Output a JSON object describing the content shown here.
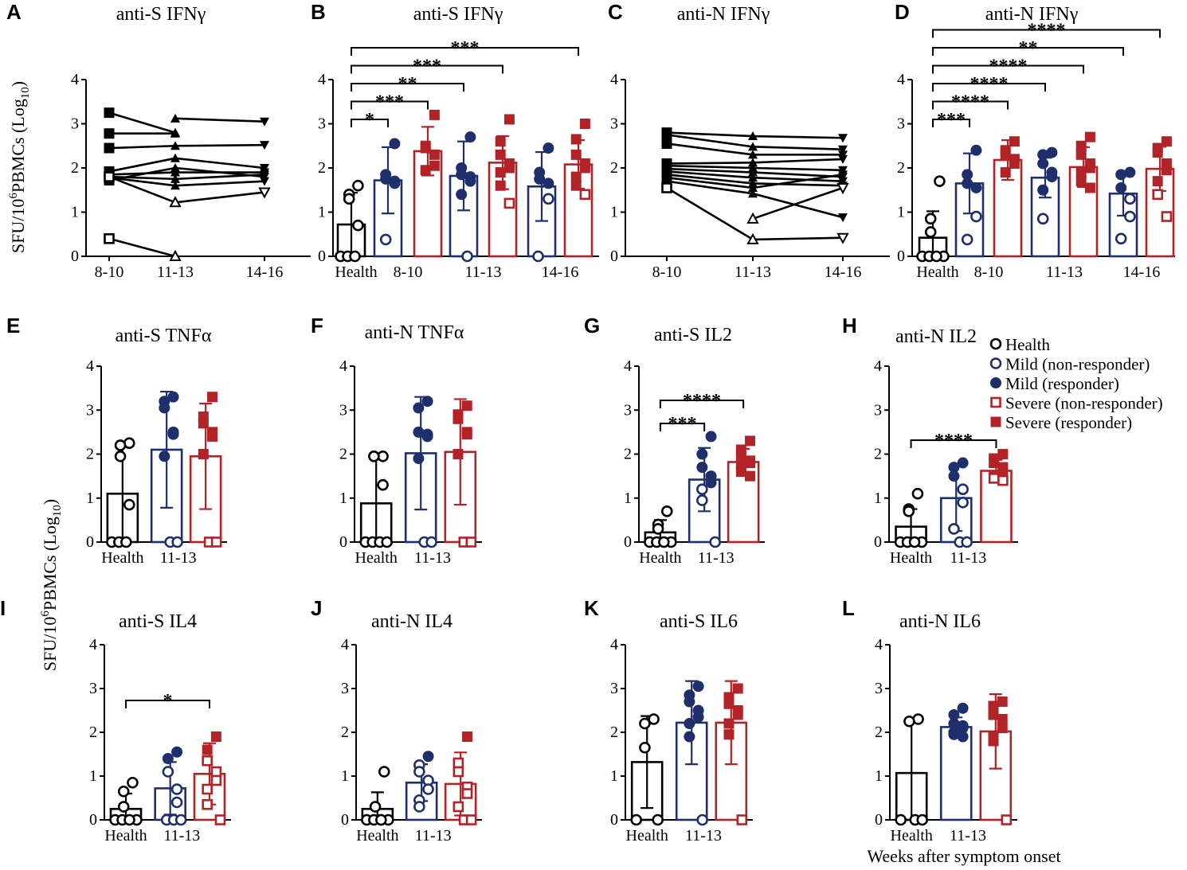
{
  "figure": {
    "y_axis_label_top": "SFU/10⁶ PBMCs (Log₁₀)",
    "y_axis_label_mid": "SFU/10⁶ PBMCs (Log₁₀)",
    "x_axis_label": "Weeks after symptom onset",
    "legend": [
      {
        "label": "Health",
        "marker": "circle-open",
        "color": "#000000"
      },
      {
        "label": "Mild (non-responder)",
        "marker": "circle-open",
        "color": "#1f2f6b"
      },
      {
        "label": "Mild (responder)",
        "marker": "circle-filled",
        "color": "#1f2f6b"
      },
      {
        "label": "Severe (non-responder)",
        "marker": "square-open",
        "color": "#b22328"
      },
      {
        "label": "Severe (responder)",
        "marker": "square-filled",
        "color": "#b22328"
      }
    ],
    "colors": {
      "health": "#000000",
      "mild": "#1f2f6b",
      "severe": "#b22328"
    }
  },
  "chart_data": [
    {
      "panel": "A",
      "type": "line",
      "title": "anti-S IFNγ",
      "categories": [
        "8-10",
        "11-13",
        "14-16"
      ],
      "ylim": [
        0,
        4
      ],
      "yticks": [
        "0",
        "1",
        "2",
        "3",
        "4"
      ],
      "series": [
        {
          "marker": "square-filled",
          "values": [
            3.25,
            2.8,
            null
          ]
        },
        {
          "marker": "square-filled",
          "values": [
            2.78,
            2.78,
            null
          ]
        },
        {
          "marker": "square-filled",
          "values": [
            2.45,
            2.5,
            2.52
          ]
        },
        {
          "marker": "square-filled",
          "values": [
            1.92,
            2.22,
            2.0
          ]
        },
        {
          "marker": "square-filled",
          "values": [
            1.85,
            1.9,
            1.9
          ]
        },
        {
          "marker": "square-filled",
          "values": [
            1.8,
            1.75,
            1.85
          ]
        },
        {
          "marker": "square-filled",
          "values": [
            1.72,
            2.0,
            1.8
          ]
        },
        {
          "marker": "square-filled",
          "values": [
            1.78,
            1.6,
            1.7
          ]
        },
        {
          "marker": "square-open",
          "values": [
            1.8,
            1.22,
            1.45
          ]
        },
        {
          "marker": "square-open",
          "values": [
            0.4,
            0.0,
            null
          ]
        },
        {
          "marker": "triangle-filled",
          "values": [
            null,
            3.12,
            3.05
          ]
        }
      ]
    },
    {
      "panel": "B",
      "type": "bar",
      "title": "anti-S IFNγ",
      "categories": [
        "Health",
        "8-10",
        "11-13",
        "14-16"
      ],
      "ylim": [
        0,
        4
      ],
      "yticks": [
        "0",
        "1",
        "2",
        "3",
        "4"
      ],
      "bars": [
        {
          "group": "health",
          "mean": 0.72,
          "sd": 0.72,
          "points": [
            1.6,
            1.4,
            1.3,
            0.7,
            0.0,
            0.0,
            0.0
          ]
        },
        {
          "group": "mild",
          "mean": 1.72,
          "sd": 0.75,
          "points": [
            2.55,
            1.85,
            1.75,
            1.7,
            1.65,
            0.38
          ]
        },
        {
          "group": "severe",
          "mean": 2.38,
          "sd": 0.55,
          "points": [
            3.2,
            2.5,
            2.45,
            2.3,
            2.05,
            1.95
          ]
        },
        {
          "group": "mild",
          "mean": 1.82,
          "sd": 0.78,
          "points": [
            2.7,
            2.0,
            1.85,
            1.8,
            1.7,
            1.4,
            0.0
          ]
        },
        {
          "group": "severe",
          "mean": 2.12,
          "sd": 0.6,
          "points": [
            3.1,
            2.6,
            2.3,
            2.1,
            2.0,
            1.9,
            1.6,
            1.2
          ]
        },
        {
          "group": "mild",
          "mean": 1.58,
          "sd": 0.78,
          "points": [
            2.45,
            1.9,
            1.75,
            1.65,
            1.3,
            0.0
          ]
        },
        {
          "group": "severe",
          "mean": 2.08,
          "sd": 0.55,
          "points": [
            3.0,
            2.65,
            2.3,
            2.1,
            2.0,
            1.8,
            1.6,
            1.4
          ]
        }
      ],
      "significance": [
        {
          "from": 0,
          "to": 1,
          "label": "*"
        },
        {
          "from": 0,
          "to": 2,
          "label": "***"
        },
        {
          "from": 0,
          "to": 3,
          "label": "**"
        },
        {
          "from": 0,
          "to": 4,
          "label": "***"
        },
        {
          "from": 0,
          "to": 6,
          "label": "***"
        }
      ]
    },
    {
      "panel": "C",
      "type": "line",
      "title": "anti-N IFNγ",
      "categories": [
        "8-10",
        "11-13",
        "14-16"
      ],
      "ylim": [
        0,
        4
      ],
      "yticks": [
        "0",
        "1",
        "2",
        "3",
        "4"
      ],
      "series": [
        {
          "marker": "square-filled",
          "values": [
            2.8,
            2.72,
            2.68
          ]
        },
        {
          "marker": "square-filled",
          "values": [
            2.75,
            2.48,
            2.42
          ]
        },
        {
          "marker": "square-filled",
          "values": [
            2.55,
            2.3,
            2.3
          ]
        },
        {
          "marker": "square-filled",
          "values": [
            2.1,
            2.12,
            2.2
          ]
        },
        {
          "marker": "square-filled",
          "values": [
            2.05,
            2.0,
            1.95
          ]
        },
        {
          "marker": "square-filled",
          "values": [
            1.98,
            1.9,
            1.8
          ]
        },
        {
          "marker": "square-filled",
          "values": [
            1.92,
            1.78,
            1.7
          ]
        },
        {
          "marker": "square-filled",
          "values": [
            1.85,
            1.65,
            1.6
          ]
        },
        {
          "marker": "square-filled",
          "values": [
            1.78,
            1.55,
            1.85
          ]
        },
        {
          "marker": "square-filled",
          "values": [
            1.7,
            1.42,
            0.88
          ]
        },
        {
          "marker": "square-open",
          "values": [
            1.55,
            0.38,
            0.42
          ]
        },
        {
          "marker": "triangle-open",
          "values": [
            null,
            0.85,
            1.55
          ]
        }
      ]
    },
    {
      "panel": "D",
      "type": "bar",
      "title": "anti-N IFNγ",
      "categories": [
        "Health",
        "8-10",
        "11-13",
        "14-16"
      ],
      "ylim": [
        0,
        4
      ],
      "yticks": [
        "0",
        "1",
        "2",
        "3",
        "4"
      ],
      "bars": [
        {
          "group": "health",
          "mean": 0.42,
          "sd": 0.6,
          "points": [
            1.7,
            0.85,
            0.55,
            0.0,
            0.0,
            0.0,
            0.0
          ]
        },
        {
          "group": "mild",
          "mean": 1.65,
          "sd": 0.68,
          "points": [
            2.4,
            1.85,
            1.65,
            1.55,
            0.9,
            0.38
          ]
        },
        {
          "group": "severe",
          "mean": 2.18,
          "sd": 0.45,
          "points": [
            2.6,
            2.4,
            2.3,
            2.2,
            2.1,
            1.9
          ]
        },
        {
          "group": "mild",
          "mean": 1.78,
          "sd": 0.45,
          "points": [
            2.35,
            2.3,
            2.1,
            1.9,
            1.8,
            1.5,
            0.85
          ]
        },
        {
          "group": "severe",
          "mean": 2.02,
          "sd": 0.45,
          "points": [
            2.7,
            2.5,
            2.3,
            2.1,
            2.0,
            1.9,
            1.7,
            1.55
          ]
        },
        {
          "group": "mild",
          "mean": 1.42,
          "sd": 0.5,
          "points": [
            1.9,
            1.85,
            1.55,
            1.3,
            0.9,
            0.4
          ]
        },
        {
          "group": "severe",
          "mean": 1.98,
          "sd": 0.5,
          "points": [
            2.6,
            2.45,
            2.35,
            2.1,
            1.95,
            1.7,
            1.4,
            0.9
          ]
        }
      ],
      "significance": [
        {
          "from": 0,
          "to": 1,
          "label": "***"
        },
        {
          "from": 0,
          "to": 2,
          "label": "****"
        },
        {
          "from": 0,
          "to": 3,
          "label": "****"
        },
        {
          "from": 0,
          "to": 4,
          "label": "****"
        },
        {
          "from": 0,
          "to": 5,
          "label": "**"
        },
        {
          "from": 0,
          "to": 6,
          "label": "****"
        }
      ]
    },
    {
      "panel": "E",
      "type": "bar",
      "title": "anti-S TNFα",
      "categories": [
        "Health",
        "11-13"
      ],
      "ylim": [
        0,
        4
      ],
      "yticks": [
        "0",
        "1",
        "2",
        "3",
        "4"
      ],
      "bars": [
        {
          "group": "health",
          "mean": 1.1,
          "sd": 1.15,
          "points": [
            2.25,
            2.2,
            1.95,
            0.85,
            0.0,
            0.0,
            0.0
          ]
        },
        {
          "group": "mild",
          "mean": 2.1,
          "sd": 1.32,
          "points": [
            3.3,
            3.2,
            3.05,
            2.5,
            2.45,
            1.95,
            0.0,
            0.0
          ]
        },
        {
          "group": "severe",
          "mean": 1.95,
          "sd": 1.2,
          "points": [
            3.3,
            2.85,
            2.7,
            2.5,
            2.4,
            2.0,
            0.0,
            0.0
          ]
        }
      ],
      "significance": []
    },
    {
      "panel": "F",
      "type": "bar",
      "title": "anti-N TNFα",
      "categories": [
        "Health",
        "11-13"
      ],
      "ylim": [
        0,
        4
      ],
      "yticks": [
        "0",
        "1",
        "2",
        "3",
        "4"
      ],
      "bars": [
        {
          "group": "health",
          "mean": 0.88,
          "sd": 1.08,
          "points": [
            1.95,
            1.95,
            1.95,
            1.3,
            0.0,
            0.0,
            0.0,
            0.0
          ]
        },
        {
          "group": "mild",
          "mean": 2.02,
          "sd": 1.28,
          "points": [
            3.2,
            3.05,
            2.5,
            2.45,
            2.4,
            1.9,
            0.0,
            0.0
          ]
        },
        {
          "group": "severe",
          "mean": 2.05,
          "sd": 1.2,
          "points": [
            3.1,
            2.9,
            2.8,
            2.5,
            2.45,
            2.0,
            0.0,
            0.0
          ]
        }
      ],
      "significance": []
    },
    {
      "panel": "G",
      "type": "bar",
      "title": "anti-S IL2",
      "categories": [
        "Health",
        "11-13"
      ],
      "ylim": [
        0,
        4
      ],
      "yticks": [
        "0",
        "1",
        "2",
        "3",
        "4"
      ],
      "bars": [
        {
          "group": "health",
          "mean": 0.22,
          "sd": 0.28,
          "points": [
            0.7,
            0.4,
            0.3,
            0.0,
            0.0,
            0.0,
            0.0
          ]
        },
        {
          "group": "mild",
          "mean": 1.42,
          "sd": 0.72,
          "points": [
            2.4,
            2.0,
            1.7,
            1.5,
            1.35,
            1.2,
            0.95,
            0.0
          ]
        },
        {
          "group": "severe",
          "mean": 1.82,
          "sd": 0.3,
          "points": [
            2.3,
            2.1,
            1.95,
            1.85,
            1.8,
            1.75,
            1.6,
            1.5
          ]
        }
      ],
      "significance": [
        {
          "from": 0,
          "to": 1,
          "label": "***"
        },
        {
          "from": 0,
          "to": 2,
          "label": "****"
        }
      ]
    },
    {
      "panel": "H",
      "type": "bar",
      "title": "anti-N IL2",
      "categories": [
        "Health",
        "11-13"
      ],
      "ylim": [
        0,
        4
      ],
      "yticks": [
        "0",
        "1",
        "2",
        "3",
        "4"
      ],
      "bars": [
        {
          "group": "health",
          "mean": 0.35,
          "sd": 0.4,
          "points": [
            1.1,
            0.75,
            0.7,
            0.0,
            0.0,
            0.0,
            0.0
          ]
        },
        {
          "group": "mild",
          "mean": 1.0,
          "sd": 0.75,
          "points": [
            1.8,
            1.7,
            1.5,
            1.2,
            0.9,
            0.3,
            0.0,
            0.0
          ]
        },
        {
          "group": "severe",
          "mean": 1.62,
          "sd": 0.25,
          "points": [
            2.0,
            1.9,
            1.8,
            1.7,
            1.6,
            1.5,
            1.45,
            1.4
          ]
        }
      ],
      "significance": [
        {
          "from": 0,
          "to": 2,
          "label": "****"
        }
      ]
    },
    {
      "panel": "I",
      "type": "bar",
      "title": "anti-S IL4",
      "categories": [
        "Health",
        "11-13"
      ],
      "ylim": [
        0,
        4
      ],
      "yticks": [
        "0",
        "1",
        "2",
        "3",
        "4"
      ],
      "bars": [
        {
          "group": "health",
          "mean": 0.25,
          "sd": 0.35,
          "points": [
            0.85,
            0.65,
            0.3,
            0.0,
            0.0,
            0.0,
            0.0
          ]
        },
        {
          "group": "mild",
          "mean": 0.72,
          "sd": 0.6,
          "points": [
            1.55,
            1.4,
            1.1,
            0.7,
            0.4,
            0.0,
            0.0,
            0.0
          ]
        },
        {
          "group": "severe",
          "mean": 1.05,
          "sd": 0.7,
          "points": [
            1.9,
            1.6,
            1.35,
            1.1,
            0.9,
            0.7,
            0.35,
            0.0
          ]
        }
      ],
      "significance": [
        {
          "from": 0,
          "to": 2,
          "label": "*"
        }
      ]
    },
    {
      "panel": "J",
      "type": "bar",
      "title": "anti-N IL4",
      "categories": [
        "Health",
        "11-13"
      ],
      "ylim": [
        0,
        4
      ],
      "yticks": [
        "0",
        "1",
        "2",
        "3",
        "4"
      ],
      "bars": [
        {
          "group": "health",
          "mean": 0.25,
          "sd": 0.38,
          "points": [
            1.1,
            0.3,
            0.0,
            0.0,
            0.0,
            0.0,
            0.0
          ]
        },
        {
          "group": "mild",
          "mean": 0.85,
          "sd": 0.42,
          "points": [
            1.45,
            1.25,
            1.1,
            0.9,
            0.7,
            0.45,
            0.3
          ]
        },
        {
          "group": "severe",
          "mean": 0.82,
          "sd": 0.72,
          "points": [
            1.9,
            1.3,
            1.1,
            0.75,
            0.6,
            0.3,
            0.0,
            0.0
          ]
        }
      ],
      "significance": []
    },
    {
      "panel": "K",
      "type": "bar",
      "title": "anti-S IL6",
      "categories": [
        "Health",
        "11-13"
      ],
      "ylim": [
        0,
        4
      ],
      "yticks": [
        "0",
        "1",
        "2",
        "3",
        "4"
      ],
      "bars": [
        {
          "group": "health",
          "mean": 1.32,
          "sd": 1.05,
          "points": [
            2.3,
            2.2,
            1.65,
            0.0,
            0.0
          ]
        },
        {
          "group": "mild",
          "mean": 2.22,
          "sd": 0.95,
          "points": [
            3.05,
            2.85,
            2.7,
            2.5,
            2.35,
            2.2,
            1.9,
            0.0
          ]
        },
        {
          "group": "severe",
          "mean": 2.22,
          "sd": 0.95,
          "points": [
            3.0,
            2.8,
            2.65,
            2.5,
            2.4,
            2.2,
            1.95,
            0.0
          ]
        }
      ],
      "significance": []
    },
    {
      "panel": "L",
      "type": "bar",
      "title": "anti-N IL6",
      "categories": [
        "Health",
        "11-13"
      ],
      "ylim": [
        0,
        4
      ],
      "yticks": [
        "0",
        "1",
        "2",
        "3",
        "4"
      ],
      "bars": [
        {
          "group": "health",
          "mean": 1.07,
          "sd": 1.25,
          "points": [
            2.3,
            2.25,
            0.0,
            0.0,
            0.0
          ]
        },
        {
          "group": "mild",
          "mean": 2.12,
          "sd": 0.22,
          "points": [
            2.55,
            2.4,
            2.2,
            2.15,
            2.1,
            2.0,
            1.95,
            1.9
          ]
        },
        {
          "group": "severe",
          "mean": 2.02,
          "sd": 0.85,
          "points": [
            2.7,
            2.6,
            2.4,
            2.3,
            2.1,
            1.9,
            1.8,
            0.0
          ]
        }
      ],
      "significance": []
    }
  ]
}
